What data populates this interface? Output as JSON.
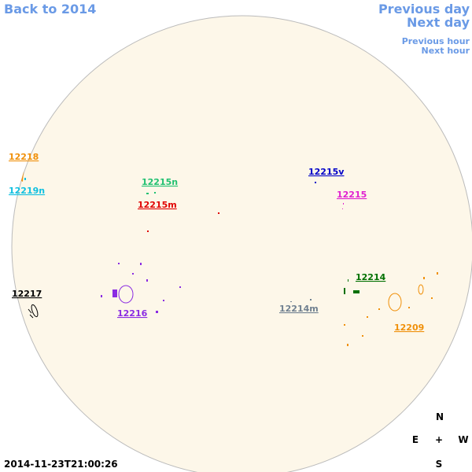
{
  "navigation": {
    "back": "Back to 2014",
    "previous_day": "Previous day",
    "next_day": "Next day",
    "previous_hour": "Previous hour",
    "next_hour": "Next hour"
  },
  "timestamp": "2014-11-23T21:00:26",
  "compass": {
    "north": "N",
    "east": "E",
    "center": "+",
    "west": "W",
    "south": "S"
  },
  "regions": [
    {
      "label": "12218",
      "color": "#f0900a"
    },
    {
      "label": "12219n",
      "color": "#10c0e0"
    },
    {
      "label": "12215n",
      "color": "#20c070"
    },
    {
      "label": "12215m",
      "color": "#e00000"
    },
    {
      "label": "12215v",
      "color": "#0000c8"
    },
    {
      "label": "12215",
      "color": "#e020d0"
    },
    {
      "label": "12214",
      "color": "#007000"
    },
    {
      "label": "12217",
      "color": "#000000"
    },
    {
      "label": "12216",
      "color": "#8a2be2"
    },
    {
      "label": "12214m",
      "color": "#708090"
    },
    {
      "label": "12209",
      "color": "#f0900a"
    }
  ]
}
